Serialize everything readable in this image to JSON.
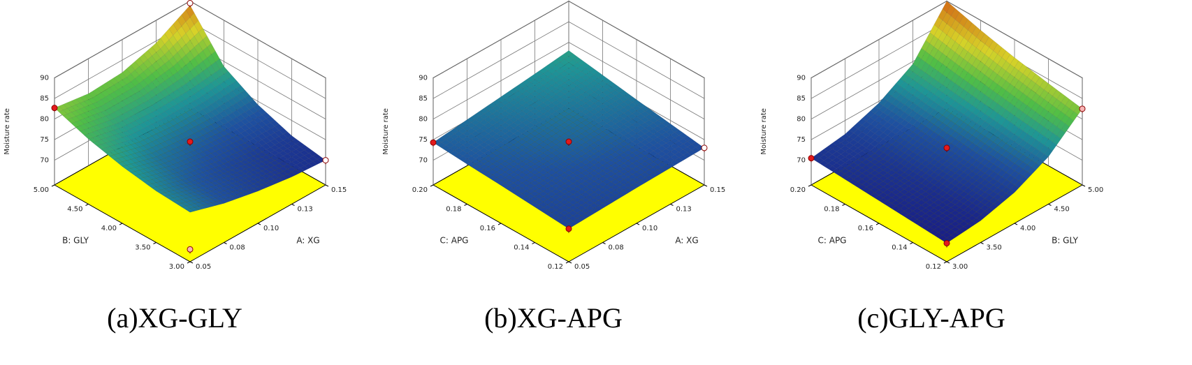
{
  "chart_data": [
    {
      "type": "surface",
      "title": "(a)XG-GLY",
      "zlabel": "Moisture rate",
      "xlabel": "A: XG",
      "ylabel": "B: GLY",
      "xlim": [
        0.05,
        0.15
      ],
      "xticks": [
        0.05,
        {
          "value": 0.075,
          "label": "0.08"
        },
        {
          "value": 0.1,
          "label": "0.10"
        },
        {
          "value": 0.125,
          "label": "0.13"
        },
        0.15
      ],
      "ylim": [
        3,
        5
      ],
      "yticks": [
        {
          "value": 3,
          "label": "3.00"
        },
        {
          "value": 3.5,
          "label": "3.50"
        },
        {
          "value": 4,
          "label": "4.00"
        },
        {
          "value": 4.5,
          "label": "4.50"
        },
        {
          "value": 5,
          "label": "5.00"
        }
      ],
      "zlim": [
        64,
        90
      ],
      "zticks": [
        70,
        75,
        80,
        85,
        90
      ],
      "x": [
        0.05,
        0.075,
        0.1,
        0.125,
        0.15
      ],
      "y": [
        3,
        3.5,
        4,
        4.5,
        5
      ],
      "z": [
        [
          76,
          73.5,
          71.8,
          70.6,
          70
        ],
        [
          76.5,
          74,
          72.5,
          71.5,
          71.3
        ],
        [
          77.8,
          75.5,
          74.5,
          74,
          74.2
        ],
        [
          79.8,
          78,
          77.5,
          77.8,
          78.8
        ],
        [
          82.7,
          81.5,
          82,
          84.5,
          89
        ]
      ],
      "points": [
        {
          "x": 0.05,
          "y": 5,
          "z": 82.7,
          "color": "#e31a1c"
        },
        {
          "x": 0.1,
          "y": 4,
          "z": 74.5,
          "color": "#e31a1c"
        },
        {
          "x": 0.15,
          "y": 3,
          "z": 70,
          "color": "#ffffff"
        },
        {
          "x": 0.15,
          "y": 5,
          "z": 89.5,
          "color": "#ffffff"
        },
        {
          "x": 0.05,
          "y": 3,
          "z": 67,
          "color": "#f7b6b6"
        }
      ]
    },
    {
      "type": "surface",
      "title": "(b)XG-APG",
      "zlabel": "Moisture rate",
      "xlabel": "A: XG",
      "ylabel": "C: APG",
      "xlim": [
        0.05,
        0.15
      ],
      "xticks": [
        0.05,
        {
          "value": 0.075,
          "label": "0.08"
        },
        {
          "value": 0.1,
          "label": "0.10"
        },
        {
          "value": 0.125,
          "label": "0.13"
        },
        0.15
      ],
      "ylim": [
        0.12,
        0.2
      ],
      "yticks": [
        0.12,
        0.14,
        0.16,
        0.18,
        {
          "value": 0.2,
          "label": "0.20"
        }
      ],
      "zlim": [
        64,
        90
      ],
      "zticks": [
        70,
        75,
        80,
        85,
        90
      ],
      "x": [
        0.05,
        0.075,
        0.1,
        0.125,
        0.15
      ],
      "y": [
        0.12,
        0.14,
        0.16,
        0.18,
        0.2
      ],
      "z": [
        [
          72,
          72.3,
          72.6,
          72.8,
          73
        ],
        [
          72.6,
          73,
          73.4,
          73.8,
          74.2
        ],
        [
          73.2,
          73.7,
          74.5,
          75,
          75.4
        ],
        [
          73.7,
          74.4,
          75.2,
          76,
          76.7
        ],
        [
          74.3,
          75.2,
          76.1,
          77,
          78
        ]
      ],
      "points": [
        {
          "x": 0.05,
          "y": 0.2,
          "z": 74.3,
          "color": "#e31a1c"
        },
        {
          "x": 0.1,
          "y": 0.16,
          "z": 74.5,
          "color": "#e31a1c"
        },
        {
          "x": 0.15,
          "y": 0.12,
          "z": 73,
          "color": "#ffffff"
        },
        {
          "x": 0.05,
          "y": 0.12,
          "z": 72,
          "color": "#e31a1c"
        }
      ]
    },
    {
      "type": "surface",
      "title": "(c)GLY-APG",
      "zlabel": "Moisture rate",
      "xlabel": "B: GLY",
      "ylabel": "C: APG",
      "xlim": [
        3,
        5
      ],
      "xticks": [
        {
          "value": 3,
          "label": "3.00"
        },
        {
          "value": 3.5,
          "label": "3.50"
        },
        {
          "value": 4,
          "label": "4.00"
        },
        {
          "value": 4.5,
          "label": "4.50"
        },
        {
          "value": 5,
          "label": "5.00"
        }
      ],
      "ylim": [
        0.12,
        0.2
      ],
      "yticks": [
        0.12,
        0.14,
        0.16,
        0.18,
        {
          "value": 0.2,
          "label": "0.20"
        }
      ],
      "zlim": [
        64,
        90
      ],
      "zticks": [
        70,
        75,
        80,
        85,
        90
      ],
      "x": [
        3,
        3.5,
        4,
        4.5,
        5
      ],
      "y": [
        0.12,
        0.14,
        0.16,
        0.18,
        0.2
      ],
      "z": [
        [
          68.5,
          69.3,
          71.5,
          75.5,
          82.5
        ],
        [
          69,
          69.8,
          72.2,
          76.3,
          84
        ],
        [
          69.5,
          70.4,
          73,
          77.3,
          85.6
        ],
        [
          70,
          71,
          73.8,
          78.3,
          87.6
        ],
        [
          70.5,
          71.7,
          74.6,
          79.4,
          90
        ]
      ],
      "points": [
        {
          "x": 3,
          "y": 0.2,
          "z": 70.5,
          "color": "#e31a1c"
        },
        {
          "x": 4,
          "y": 0.16,
          "z": 73,
          "color": "#e31a1c"
        },
        {
          "x": 5,
          "y": 0.12,
          "z": 82.5,
          "color": "#f7b6b6"
        },
        {
          "x": 3,
          "y": 0.12,
          "z": 68.5,
          "color": "#e31a1c"
        }
      ]
    }
  ]
}
